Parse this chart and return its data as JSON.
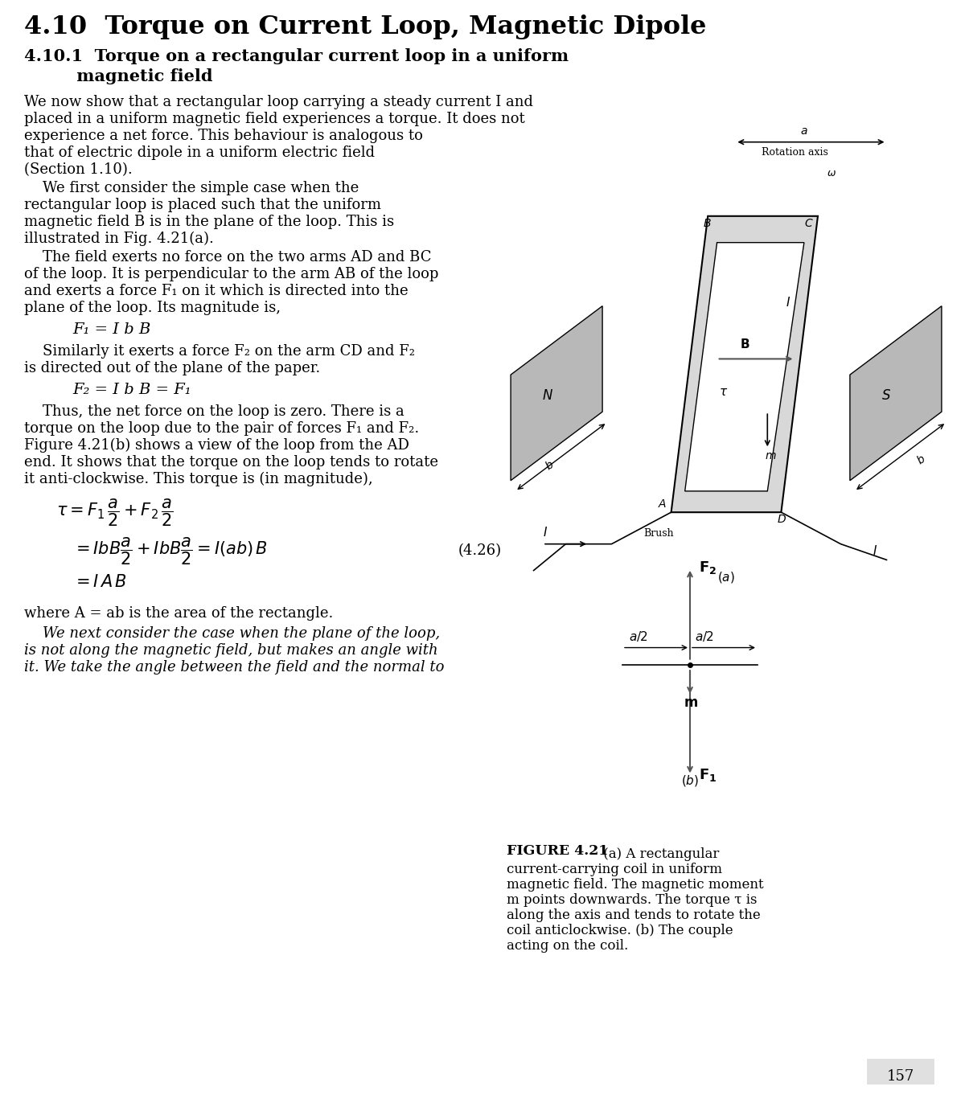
{
  "title_main": "4.10  Torque on Current Loop, Magnetic Dipole",
  "title_sub_line1": "4.10.1  Torque on a rectangular current loop in a uniform",
  "title_sub_line2": "         magnetic field",
  "para1": [
    "We now show that a rectangular loop carrying a steady current I and",
    "placed in a uniform magnetic field experiences a torque. It does not",
    "experience a net force. This behaviour is analogous to",
    "that of electric dipole in a uniform electric field",
    "(Section 1.10)."
  ],
  "para2": [
    "    We first consider the simple case when the",
    "rectangular loop is placed such that the uniform",
    "magnetic field B is in the plane of the loop. This is",
    "illustrated in Fig. 4.21(a)."
  ],
  "para3": [
    "    The field exerts no force on the two arms AD and BC",
    "of the loop. It is perpendicular to the arm AB of the loop",
    "and exerts a force F₁ on it which is directed into the",
    "plane of the loop. Its magnitude is,"
  ],
  "eq_F1": "F₁ = I b B",
  "para4": [
    "    Similarly it exerts a force F₂ on the arm CD and F₂",
    "is directed out of the plane of the paper."
  ],
  "eq_F2": "F₂ = I b B = F₁",
  "para5": [
    "    Thus, the net force on the loop is zero. There is a",
    "torque on the loop due to the pair of forces F₁ and F₂.",
    "Figure 4.21(b) shows a view of the loop from the AD",
    "end. It shows that the torque on the loop tends to rotate",
    "it anti-clockwise. This torque is (in magnitude),"
  ],
  "para6": [
    "where A = ab is the area of the rectangle."
  ],
  "para7": [
    "    We next consider the case when the plane of the loop,",
    "is not along the magnetic field, but makes an angle with",
    "it. We take the angle between the field and the normal to"
  ],
  "fig_caption_bold": "FIGURE 4.21",
  "fig_caption_rest": " (a) A rectangular\ncurrent-carrying coil in uniform\nmagnetic field. The magnetic moment\nm points downwards. The torque τ is\nalong the axis and tends to rotate the\ncoil anticlockwise. (b) The couple\nacting on the coil.",
  "page_number": "157",
  "bg": "#ffffff",
  "tc": "#000000"
}
